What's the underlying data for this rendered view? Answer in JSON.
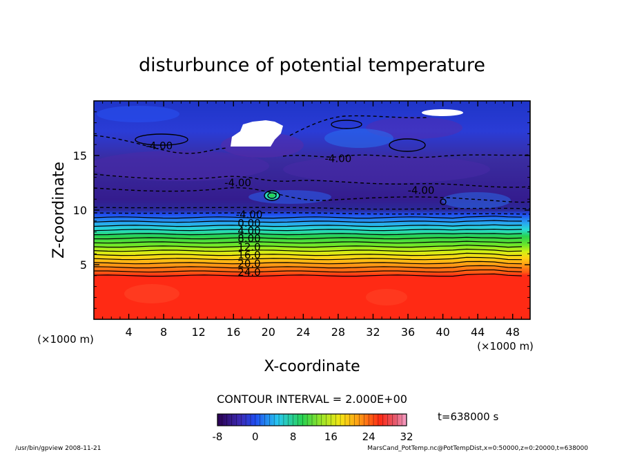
{
  "chart_data": {
    "type": "heatmap",
    "title": "disturbunce of potential temperature",
    "xlabel": "X-coordinate",
    "ylabel": "Z-coordinate",
    "x_unit_left": "(×1000 m)",
    "x_unit_right": "(×1000 m)",
    "xlim": [
      0,
      50
    ],
    "ylim": [
      0,
      20
    ],
    "x_ticks": [
      4,
      8,
      12,
      16,
      20,
      24,
      28,
      32,
      36,
      40,
      44,
      48
    ],
    "y_ticks": [
      5,
      10,
      15
    ],
    "contour_interval_text": "CONTOUR INTERVAL = 2.000E+00",
    "contour_labels": [
      {
        "text": "-4.00",
        "x": 7.5,
        "z": 15.9
      },
      {
        "text": "-4.00",
        "x": 28.0,
        "z": 14.7
      },
      {
        "text": "-4.00",
        "x": 16.5,
        "z": 12.5
      },
      {
        "text": "-4.00",
        "x": 37.5,
        "z": 11.8
      },
      {
        "text": "-4.00",
        "x": 17.8,
        "z": 9.6
      },
      {
        "text": "0.00",
        "x": 17.8,
        "z": 8.8
      },
      {
        "text": "4.00",
        "x": 17.8,
        "z": 8.1
      },
      {
        "text": "8.00",
        "x": 17.8,
        "z": 7.4
      },
      {
        "text": "12.0",
        "x": 17.8,
        "z": 6.6
      },
      {
        "text": "16.0",
        "x": 17.8,
        "z": 5.9
      },
      {
        "text": "20.0",
        "x": 17.8,
        "z": 5.1
      },
      {
        "text": "24.0",
        "x": 17.8,
        "z": 4.3
      }
    ],
    "colorbar": {
      "min": -8,
      "max": 32,
      "tick_labels": [
        "-8",
        "0",
        "8",
        "16",
        "24",
        "32"
      ]
    },
    "time_label": "t=638000 s",
    "grid": false
  },
  "footer": {
    "left": "/usr/bin/gpview   2008-11-21",
    "right": "MarsCand_PotTemp.nc@PotTempDist,x=0:50000,z=0:20000,t=638000"
  },
  "colors": {
    "deep_purple": "#3c0a8c",
    "blue": "#1f4cf0",
    "cyan": "#28c8f0",
    "green": "#28d230",
    "yellow": "#f5e614",
    "orange": "#ff9a14",
    "red": "#ff2a14"
  }
}
